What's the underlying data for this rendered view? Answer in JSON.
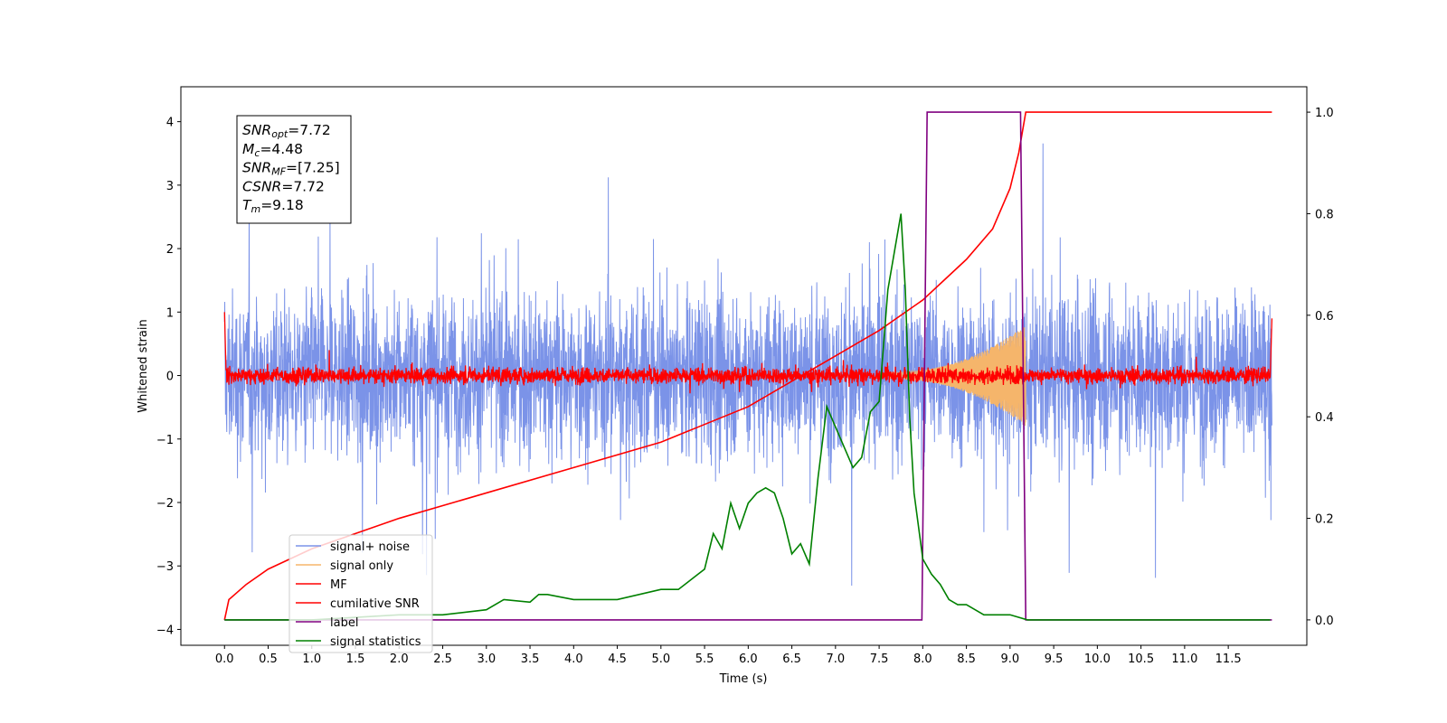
{
  "chart_data": {
    "type": "line",
    "title": "",
    "xlabel": "Time (s)",
    "ylabel": "Whitened strain",
    "xlim": [
      -0.5,
      12.4
    ],
    "ylim_left": [
      -4.25,
      4.55
    ],
    "ylim_right": [
      -0.05,
      1.05
    ],
    "x_ticks": [
      0.0,
      0.5,
      1.0,
      1.5,
      2.0,
      2.5,
      3.0,
      3.5,
      4.0,
      4.5,
      5.0,
      5.5,
      6.0,
      6.5,
      7.0,
      7.5,
      8.0,
      8.5,
      9.0,
      9.5,
      10.0,
      10.5,
      11.0,
      11.5
    ],
    "x_tick_labels": [
      "0.0",
      "0.5",
      "1.0",
      "1.5",
      "2.0",
      "2.5",
      "3.0",
      "3.5",
      "4.0",
      "4.5",
      "5.0",
      "5.5",
      "6.0",
      "6.5",
      "7.0",
      "7.5",
      "8.0",
      "8.5",
      "9.0",
      "9.5",
      "10.0",
      "10.5",
      "11.0",
      "11.5"
    ],
    "y_left_ticks": [
      -4,
      -3,
      -2,
      -1,
      0,
      1,
      2,
      3,
      4
    ],
    "y_left_tick_labels": [
      "−4",
      "−3",
      "−2",
      "−1",
      "0",
      "1",
      "2",
      "3",
      "4"
    ],
    "y_right_ticks": [
      0.0,
      0.2,
      0.4,
      0.6,
      0.8,
      1.0
    ],
    "y_right_tick_labels": [
      "0.0",
      "0.2",
      "0.4",
      "0.6",
      "0.8",
      "1.0"
    ],
    "grid": false,
    "legend_position": "lower-left",
    "legend": [
      "signal+ noise",
      "signal only",
      "MF",
      "cumilative SNR",
      "label",
      "signal statistics"
    ],
    "colors": {
      "signal_noise": "#7b93e8",
      "signal_only": "#f5b56b",
      "mf": "#ff0000",
      "cumulative_snr": "#ff0000",
      "label": "#800080",
      "signal_statistics": "#008000"
    },
    "annotation": {
      "lines": [
        {
          "main": "SNR",
          "sub": "opt",
          "rest": "=7.72"
        },
        {
          "main": "M",
          "sub": "c",
          "rest": "=4.48"
        },
        {
          "main": "SNR",
          "sub": "MF",
          "rest": "=[7.25]"
        },
        {
          "main": "CSNR",
          "sub": "",
          "rest": "=7.72"
        },
        {
          "main": "T",
          "sub": "m",
          "rest": "=9.18"
        }
      ]
    },
    "series": [
      {
        "name": "signal+ noise",
        "axis": "left",
        "style": "noise band",
        "x_range": [
          0.0,
          12.0
        ],
        "typical_range": [
          -2.3,
          2.2
        ],
        "extremes": [
          -3.7,
          4.2
        ]
      },
      {
        "name": "signal only",
        "axis": "left",
        "style": "chirp",
        "x_range": [
          7.6,
          9.18
        ],
        "peak_amplitude": 0.75
      },
      {
        "name": "MF",
        "axis": "left",
        "style": "noise band",
        "x_range": [
          0.0,
          12.0
        ],
        "typical_range": [
          -0.2,
          0.25
        ],
        "extremes": [
          -0.35,
          1.0
        ]
      },
      {
        "name": "cumilative SNR",
        "axis": "right",
        "x": [
          0.0,
          0.05,
          0.25,
          0.5,
          1.0,
          1.5,
          2.0,
          3.0,
          4.0,
          5.0,
          6.0,
          6.5,
          7.0,
          7.5,
          8.0,
          8.5,
          8.8,
          9.0,
          9.1,
          9.18,
          10.0,
          11.0,
          12.0
        ],
        "values": [
          0.0,
          0.04,
          0.07,
          0.1,
          0.14,
          0.17,
          0.2,
          0.25,
          0.3,
          0.35,
          0.42,
          0.47,
          0.52,
          0.57,
          0.63,
          0.71,
          0.77,
          0.85,
          0.92,
          1.0,
          1.0,
          1.0,
          1.0
        ]
      },
      {
        "name": "label",
        "axis": "right",
        "x": [
          0.0,
          7.99,
          8.05,
          9.12,
          9.18,
          12.0
        ],
        "values": [
          0.0,
          0.0,
          1.0,
          1.0,
          0.0,
          0.0
        ]
      },
      {
        "name": "signal statistics",
        "axis": "right",
        "x": [
          0.0,
          0.5,
          1.0,
          2.0,
          2.5,
          3.0,
          3.2,
          3.5,
          3.6,
          3.7,
          4.0,
          4.5,
          5.0,
          5.2,
          5.5,
          5.6,
          5.7,
          5.8,
          5.9,
          6.0,
          6.1,
          6.2,
          6.3,
          6.4,
          6.5,
          6.6,
          6.7,
          6.8,
          6.9,
          7.0,
          7.1,
          7.2,
          7.3,
          7.4,
          7.5,
          7.6,
          7.7,
          7.75,
          7.8,
          7.85,
          7.9,
          8.0,
          8.1,
          8.2,
          8.3,
          8.4,
          8.5,
          8.6,
          8.7,
          8.8,
          9.0,
          9.2,
          9.5,
          10.0,
          11.0,
          11.98
        ],
        "values": [
          0.0,
          0.0,
          0.0,
          0.01,
          0.01,
          0.02,
          0.04,
          0.035,
          0.05,
          0.05,
          0.04,
          0.04,
          0.06,
          0.06,
          0.1,
          0.17,
          0.14,
          0.23,
          0.18,
          0.23,
          0.25,
          0.26,
          0.25,
          0.2,
          0.13,
          0.15,
          0.11,
          0.28,
          0.42,
          0.38,
          0.34,
          0.3,
          0.32,
          0.41,
          0.43,
          0.65,
          0.75,
          0.8,
          0.65,
          0.4,
          0.25,
          0.12,
          0.09,
          0.07,
          0.04,
          0.03,
          0.03,
          0.02,
          0.01,
          0.01,
          0.01,
          0.0,
          0.0,
          0.0,
          0.0,
          0.0
        ]
      }
    ]
  }
}
